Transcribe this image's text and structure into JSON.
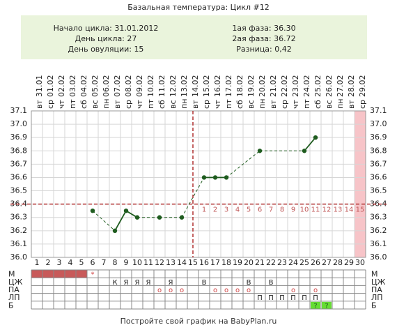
{
  "chart_data": {
    "type": "line",
    "title": "Базальная температура: Цикл #12",
    "info_left": [
      "Начало цикла: 31.01.2012",
      "День цикла: 27",
      "День овуляции: 15"
    ],
    "info_right": [
      "1ая фаза: 36.30",
      "2ая фаза: 36.72",
      "Разница: 0,42"
    ],
    "categories": [
      "1",
      "2",
      "3",
      "4",
      "5",
      "6",
      "7",
      "8",
      "9",
      "10",
      "11",
      "12",
      "13",
      "14",
      "15",
      "16",
      "17",
      "18",
      "19",
      "20",
      "21",
      "22",
      "23",
      "24",
      "25",
      "26",
      "27",
      "28",
      "29",
      "30"
    ],
    "dates": [
      "31.01",
      "01.02",
      "02.02",
      "03.02",
      "04.02",
      "05.02",
      "06.02",
      "07.02",
      "08.02",
      "09.02",
      "10.02",
      "11.02",
      "12.02",
      "13.02",
      "14.02",
      "15.02",
      "16.02",
      "17.02",
      "18.02",
      "19.02",
      "20.02",
      "21.02",
      "22.02",
      "23.02",
      "24.02",
      "25.02",
      "26.02",
      "27.02",
      "28.02",
      "29.02"
    ],
    "weekdays": [
      "вт",
      "ср",
      "чт",
      "пт",
      "сб",
      "вс",
      "пн",
      "вт",
      "ср",
      "чт",
      "пт",
      "сб",
      "вс",
      "пн",
      "вт",
      "ср",
      "чт",
      "пт",
      "сб",
      "вс",
      "пн",
      "вт",
      "ср",
      "чт",
      "пт",
      "сб",
      "вс",
      "пн",
      "вт",
      "ср"
    ],
    "values": [
      null,
      null,
      null,
      null,
      null,
      36.35,
      null,
      36.2,
      36.35,
      36.3,
      null,
      36.3,
      null,
      36.3,
      null,
      36.6,
      36.6,
      36.6,
      null,
      null,
      36.8,
      null,
      null,
      null,
      36.8,
      36.9,
      null,
      null,
      null,
      null
    ],
    "color": "#1f5c1f",
    "ylim": [
      36.0,
      37.1
    ],
    "yticks": [
      {
        "value": 36.0,
        "label": "36.0"
      },
      36.1,
      36.2,
      36.3,
      36.4,
      36.5,
      36.6,
      36.7,
      36.8,
      36.9,
      {
        "value": 37.0,
        "label": "37.0"
      },
      37.1
    ],
    "grid": true,
    "coverline": 36.4,
    "ovulation_day": 15,
    "phase2_days": [
      1,
      2,
      3,
      4,
      5,
      6,
      7,
      8,
      9,
      10,
      11,
      12,
      13,
      14,
      15
    ],
    "marker_color": "#b03030",
    "shaded_day": 30,
    "moon_day": 21,
    "rows": [
      {
        "label": "М",
        "filled_days": [
          1,
          2,
          3,
          4,
          5
        ],
        "fill": "#c85a5a",
        "text_color": "#d04040",
        "cells": [
          null,
          null,
          null,
          null,
          null,
          "*",
          null,
          null,
          null,
          null,
          null,
          null,
          null,
          null,
          null,
          null,
          null,
          null,
          null,
          null,
          null,
          null,
          null,
          null,
          null,
          null,
          null,
          null,
          null,
          null
        ]
      },
      {
        "label": "ЦЖ",
        "text_color": "#222",
        "cells": [
          null,
          null,
          null,
          null,
          null,
          null,
          null,
          "К",
          "Я",
          "Я",
          "Я",
          null,
          "Я",
          null,
          null,
          "В",
          null,
          null,
          null,
          "В",
          null,
          "В",
          null,
          null,
          null,
          null,
          null,
          null,
          null,
          null
        ]
      },
      {
        "label": "ПА",
        "text_color": "#d04040",
        "cells": [
          null,
          null,
          null,
          null,
          null,
          null,
          null,
          null,
          null,
          null,
          null,
          "о",
          "о",
          "о",
          null,
          null,
          "о",
          "о",
          "о",
          "о",
          null,
          null,
          null,
          "о",
          null,
          "о",
          null,
          null,
          null,
          null
        ]
      },
      {
        "label": "ЛП",
        "text_color": "#222",
        "cells": [
          null,
          null,
          null,
          null,
          null,
          null,
          null,
          null,
          null,
          null,
          null,
          null,
          null,
          null,
          null,
          null,
          null,
          null,
          null,
          null,
          "П",
          "П",
          "П",
          "П",
          "П",
          "П",
          null,
          null,
          null,
          null
        ]
      },
      {
        "label": "Б",
        "text_color": "#226622",
        "fill": "#66dd33",
        "cells": [
          null,
          null,
          null,
          null,
          null,
          null,
          null,
          null,
          null,
          null,
          null,
          null,
          null,
          null,
          null,
          null,
          null,
          null,
          null,
          null,
          null,
          null,
          null,
          null,
          null,
          "?",
          "?",
          null,
          null,
          null
        ]
      }
    ],
    "footer": "Постройте свой график на BabyPlan.ru"
  }
}
